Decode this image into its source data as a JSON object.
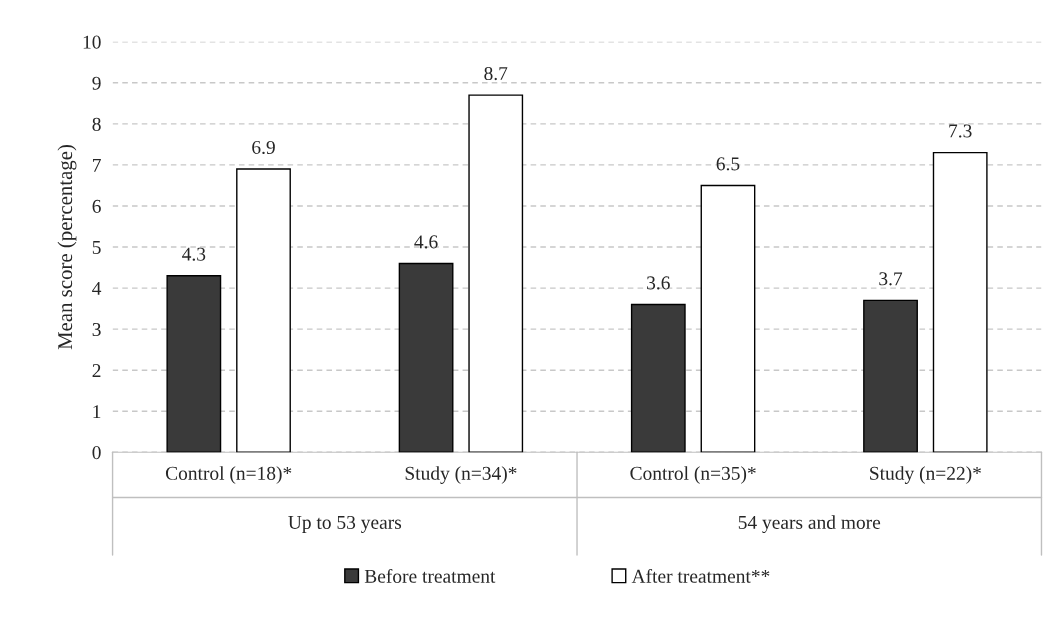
{
  "chart_data": {
    "type": "bar",
    "ylabel": "Mean score (percentage)",
    "categories": [
      "Control (n=18)*",
      "Study (n=34)*",
      "Control (n=35)*",
      "Study (n=22)*"
    ],
    "series": [
      {
        "name": "Before treatment",
        "color": "#3a3a3a",
        "values": [
          4.3,
          4.6,
          3.6,
          3.7
        ]
      },
      {
        "name": "After treatment**",
        "color": "#ffffff",
        "values": [
          6.9,
          8.7,
          6.5,
          7.3
        ]
      }
    ],
    "annotations": [
      "Up to 53 years",
      "54 years and more"
    ],
    "ylim": [
      0,
      10
    ],
    "yticks": [
      0,
      1,
      2,
      3,
      4,
      5,
      6,
      7,
      8,
      9,
      10
    ],
    "grid": "y",
    "data_labels": true,
    "legend": "bottom"
  }
}
